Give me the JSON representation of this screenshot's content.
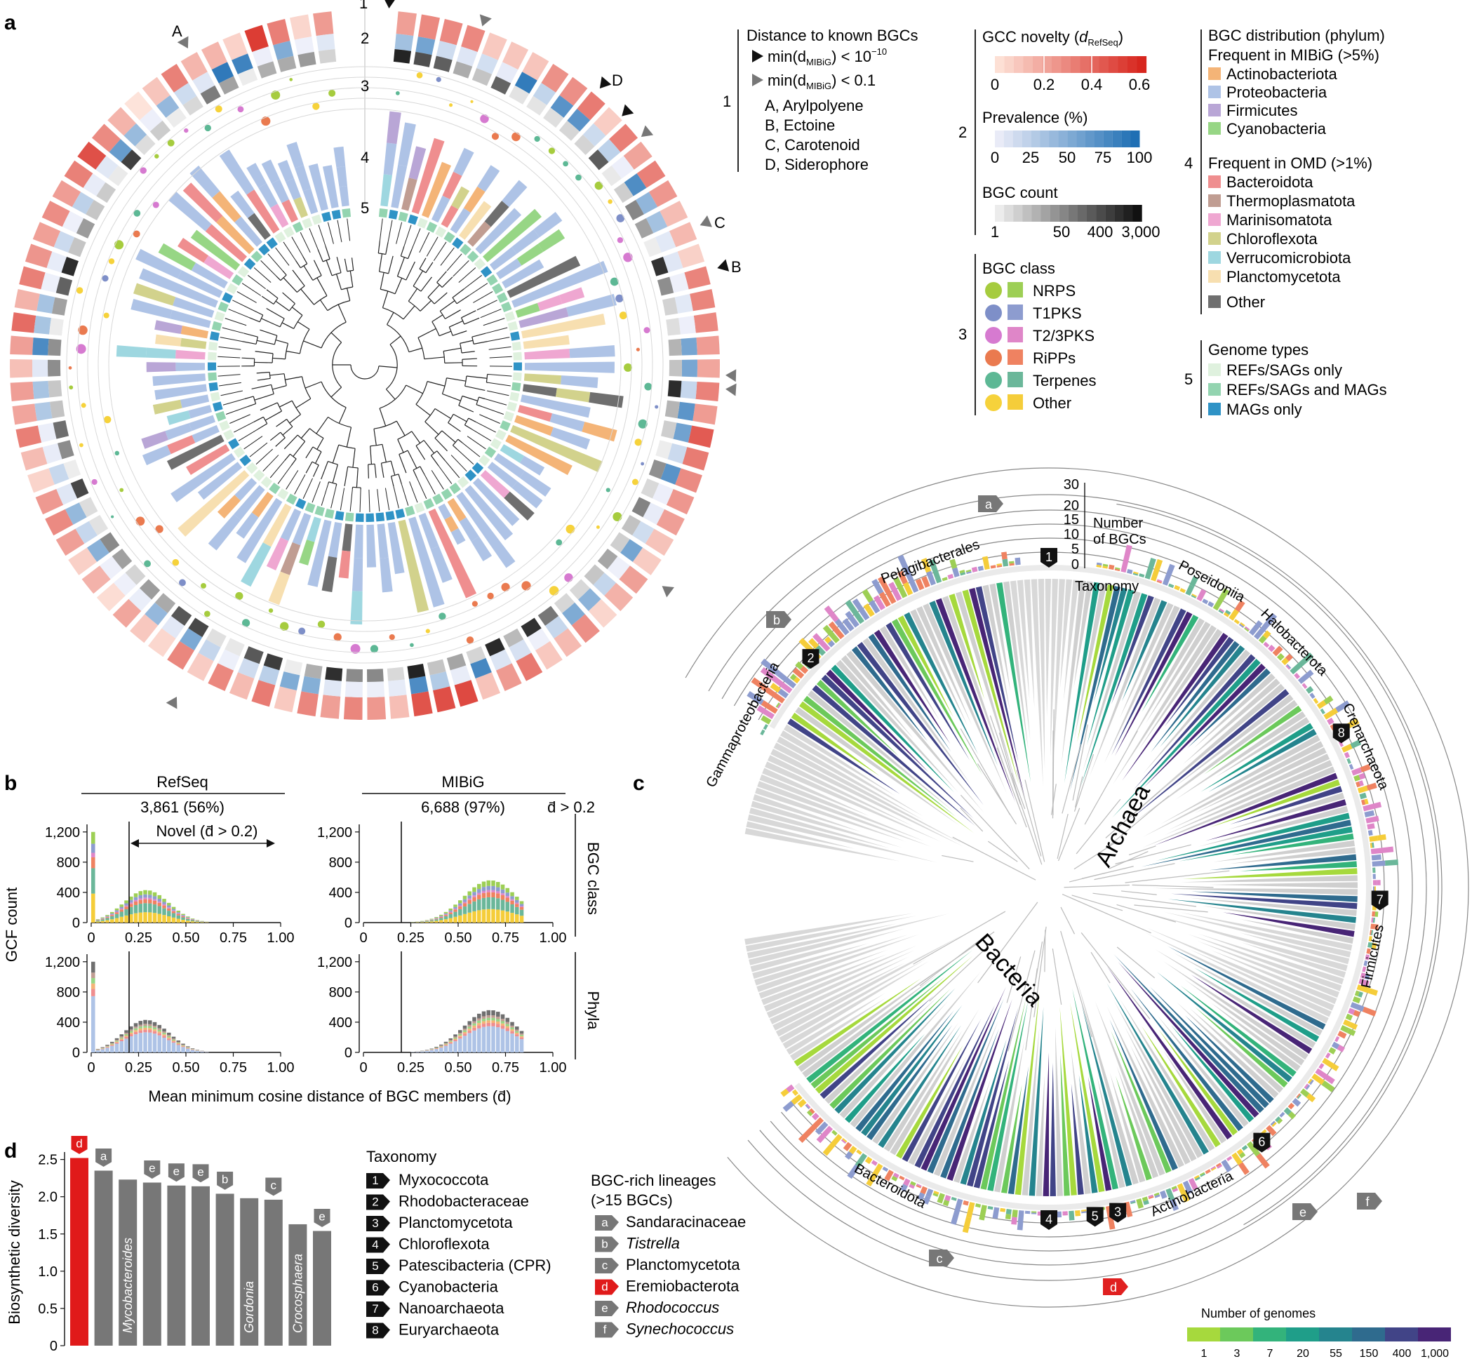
{
  "panels": {
    "a": "a",
    "b": "b",
    "c": "c",
    "d": "d"
  },
  "panel_a": {
    "ring_numbers": [
      "1",
      "2",
      "3",
      "4",
      "5"
    ],
    "point_labels": [
      "A",
      "B",
      "C",
      "D"
    ],
    "legend1": {
      "number": "1",
      "title": "Distance to known BGCs",
      "row1": "min(d",
      "row1_sub": "MIBiG",
      "row1_tail": ") < 10",
      "row1_sup": "−10",
      "row2": "min(d",
      "row2_sub": "MIBiG",
      "row2_tail": ") < 0.1",
      "items": [
        "A, Arylpolyene",
        "B, Ectoine",
        "C, Carotenoid",
        "D, Siderophore"
      ]
    },
    "legend2": {
      "number": "2",
      "novelty_title": "GCC novelty (",
      "novelty_sym": "d",
      "novelty_sub": "RefSeq",
      "novelty_close": ")",
      "novelty_ticks": [
        "0",
        "0.2",
        "0.4",
        "0.6"
      ],
      "prevalence_title": "Prevalence (%)",
      "prevalence_ticks": [
        "0",
        "25",
        "50",
        "75",
        "100"
      ],
      "count_title": "BGC count",
      "count_ticks": [
        "1",
        "50",
        "400",
        "3,000"
      ]
    },
    "legend3": {
      "number": "3",
      "title": "BGC class",
      "classes": [
        {
          "label": "NRPS",
          "dot": "#a6cc3e",
          "sq": "#9dcf55"
        },
        {
          "label": "T1PKS",
          "dot": "#7e8fc8",
          "sq": "#8d9ccf"
        },
        {
          "label": "T2/3PKS",
          "dot": "#d67ad0",
          "sq": "#df86c8"
        },
        {
          "label": "RiPPs",
          "dot": "#ea7a4f",
          "sq": "#ef8261"
        },
        {
          "label": "Terpenes",
          "dot": "#5db895",
          "sq": "#6bb79a"
        },
        {
          "label": "Other",
          "dot": "#f6d23b",
          "sq": "#f5cd3a"
        }
      ]
    },
    "legend4": {
      "number": "4",
      "title": "BGC distribution (phylum)",
      "mibig_title": "Frequent in MIBiG (>5%)",
      "mibig": [
        {
          "label": "Actinobacteriota",
          "color": "#f4b477"
        },
        {
          "label": "Proteobacteria",
          "color": "#aec3e6"
        },
        {
          "label": "Firmicutes",
          "color": "#b9a6d6"
        },
        {
          "label": "Cyanobacteria",
          "color": "#97d685"
        }
      ],
      "omd_title": "Frequent in OMD (>1%)",
      "omd": [
        {
          "label": "Bacteroidota",
          "color": "#ef8e8f"
        },
        {
          "label": "Thermoplasmatota",
          "color": "#c09d92"
        },
        {
          "label": "Marinisomatota",
          "color": "#efa7d1"
        },
        {
          "label": "Chloroflexota",
          "color": "#d2d28c"
        },
        {
          "label": "Verrucomicrobiota",
          "color": "#9ed7e0"
        },
        {
          "label": "Planctomycetota",
          "color": "#f7dfb0"
        }
      ],
      "other": {
        "label": "Other",
        "color": "#6f6f6f"
      }
    },
    "legend5": {
      "number": "5",
      "title": "Genome types",
      "items": [
        {
          "label": "REFs/SAGs only",
          "color": "#dff1de"
        },
        {
          "label": "REFs/SAGs and MAGs",
          "color": "#93d4b0"
        },
        {
          "label": "MAGs only",
          "color": "#2f93c6"
        }
      ]
    }
  },
  "panel_b": {
    "col_titles": [
      "RefSeq",
      "MIBiG"
    ],
    "col_counts": [
      "3,861 (56%)",
      "6,688 (97%)"
    ],
    "dbar_note": "d̄ > 0.2",
    "novel_label": "Novel (d̄ > 0.2)",
    "row_labels": [
      "BGC class",
      "Phyla"
    ],
    "ylabel": "GCF count",
    "xlabel": "Mean minimum cosine distance of BGC members (d̄)",
    "yticks": [
      "0",
      "400",
      "800",
      "1,200"
    ],
    "xticks": [
      "0",
      "0.25",
      "0.50",
      "0.75",
      "1.00"
    ]
  },
  "panel_c": {
    "nbgc_ticks": [
      "0",
      "5",
      "10",
      "15",
      "20",
      "30"
    ],
    "nbgc_label": [
      "Number",
      "of BGCs"
    ],
    "taxonomy_label": "Taxonomy",
    "clade_labels": [
      "Pelagibacterales",
      "Gammaproteobacteria",
      "Bacteroidota",
      "Actinobacteria",
      "Firmicutes",
      "Poseidoniia",
      "Halobacterota",
      "Crenarchaeota"
    ],
    "domain_labels": [
      "Archaea",
      "Bacteria"
    ],
    "numbered_markers": [
      "1",
      "2",
      "3",
      "4",
      "5",
      "6",
      "7",
      "8"
    ],
    "lettered_markers": [
      "a",
      "b",
      "c",
      "d",
      "e",
      "f"
    ],
    "genomes_title": "Number of genomes",
    "genomes_ticks": [
      "1",
      "3",
      "7",
      "20",
      "55",
      "150",
      "400",
      "1,000"
    ],
    "genomes_colors": [
      "#a6d93d",
      "#6cc95b",
      "#33b37b",
      "#1f9e89",
      "#25848e",
      "#2f6b8e",
      "#414487",
      "#482576"
    ]
  },
  "panel_d": {
    "ylabel": "Biosynthetic diversity",
    "yticks": [
      "0",
      "0.5",
      "1.0",
      "1.5",
      "2.0",
      "2.5"
    ],
    "chart_data": {
      "type": "bar",
      "ylabel": "Biosynthetic diversity",
      "ylim": [
        0,
        2.6
      ],
      "bars": [
        {
          "value": 2.52,
          "tag": "d",
          "label": "",
          "highlight": true
        },
        {
          "value": 2.35,
          "tag": "a",
          "label": ""
        },
        {
          "value": 2.23,
          "tag": "",
          "label": "Mycobacteroides"
        },
        {
          "value": 2.19,
          "tag": "e",
          "label": ""
        },
        {
          "value": 2.15,
          "tag": "e",
          "label": ""
        },
        {
          "value": 2.14,
          "tag": "e",
          "label": ""
        },
        {
          "value": 2.04,
          "tag": "b",
          "label": ""
        },
        {
          "value": 1.98,
          "tag": "",
          "label": "Gordonia"
        },
        {
          "value": 1.96,
          "tag": "c",
          "label": ""
        },
        {
          "value": 1.63,
          "tag": "",
          "label": "Crocosphaera"
        },
        {
          "value": 1.54,
          "tag": "e",
          "label": ""
        }
      ]
    },
    "taxonomy_title": "Taxonomy",
    "taxonomy": [
      {
        "n": "1",
        "label": "Myxococcota"
      },
      {
        "n": "2",
        "label": "Rhodobacteraceae"
      },
      {
        "n": "3",
        "label": "Planctomycetota"
      },
      {
        "n": "4",
        "label": "Chloroflexota"
      },
      {
        "n": "5",
        "label": "Patescibacteria (CPR)"
      },
      {
        "n": "6",
        "label": "Cyanobacteria"
      },
      {
        "n": "7",
        "label": "Nanoarchaeota"
      },
      {
        "n": "8",
        "label": "Euryarchaeota"
      }
    ],
    "lineages_title": [
      "BGC-rich lineages",
      "(>15 BGCs)"
    ],
    "lineages": [
      {
        "k": "a",
        "label": "Sandaracinaceae",
        "italic": false,
        "red": false
      },
      {
        "k": "b",
        "label": "Tistrella",
        "italic": true,
        "red": false
      },
      {
        "k": "c",
        "label": "Planctomycetota",
        "italic": false,
        "red": false
      },
      {
        "k": "d",
        "label": "Eremiobacterota",
        "italic": false,
        "red": true
      },
      {
        "k": "e",
        "label": "Rhodococcus",
        "italic": true,
        "red": false
      },
      {
        "k": "f",
        "label": "Synechococcus",
        "italic": true,
        "red": false
      }
    ]
  }
}
